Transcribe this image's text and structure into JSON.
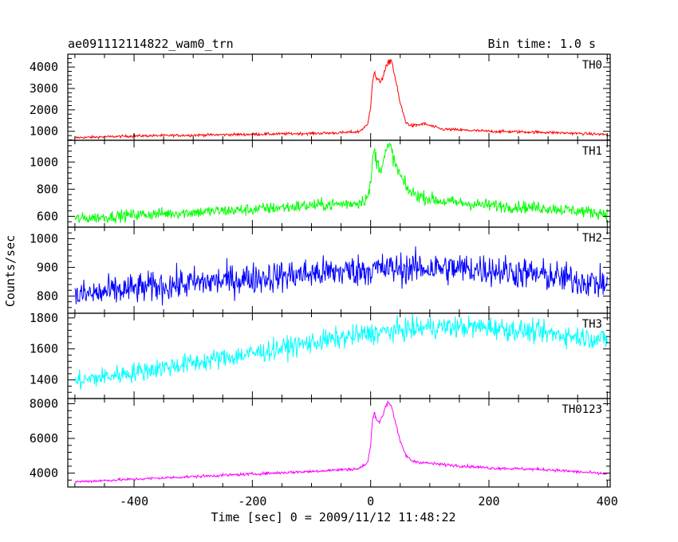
{
  "header": {
    "title": "ae091112114822_wam0_trn",
    "bin_time": "Bin time: 1.0 s"
  },
  "chart_data": {
    "type": "line",
    "title": "ae091112114822_wam0_trn",
    "subtitle": "Bin time: 1.0 s",
    "xlabel": "Time [sec] 0 = 2009/11/12 11:48:22",
    "ylabel": "Counts/sec",
    "xlim": [
      -512,
      405
    ],
    "x_ticks": [
      -400,
      -200,
      0,
      200,
      400
    ],
    "grid": false,
    "legend": "none",
    "panels": [
      {
        "name": "TH0",
        "color": "#ff0000",
        "ylim": [
          580,
          4600
        ],
        "y_ticks": [
          1000,
          2000,
          3000,
          4000
        ],
        "noise": 40,
        "x": [
          -500,
          -400,
          -300,
          -200,
          -100,
          -50,
          -20,
          -5,
          0,
          3,
          6,
          10,
          15,
          20,
          25,
          30,
          35,
          40,
          50,
          60,
          70,
          90,
          120,
          200,
          300,
          400
        ],
        "values": [
          700,
          780,
          820,
          860,
          900,
          930,
          980,
          1300,
          2200,
          3300,
          3750,
          3450,
          3300,
          3500,
          3900,
          4200,
          4350,
          3700,
          2300,
          1400,
          1250,
          1350,
          1100,
          1000,
          950,
          850
        ]
      },
      {
        "name": "TH1",
        "color": "#00ff00",
        "ylim": [
          520,
          1160
        ],
        "y_ticks": [
          600,
          800,
          1000
        ],
        "noise": 30,
        "x": [
          -500,
          -400,
          -300,
          -200,
          -100,
          -50,
          -20,
          -5,
          0,
          3,
          6,
          10,
          15,
          20,
          25,
          30,
          35,
          40,
          50,
          60,
          70,
          90,
          120,
          200,
          300,
          400
        ],
        "values": [
          580,
          610,
          630,
          650,
          680,
          690,
          700,
          740,
          830,
          1000,
          1090,
          1010,
          950,
          990,
          1060,
          1110,
          1100,
          1000,
          900,
          810,
          770,
          740,
          710,
          680,
          660,
          620
        ]
      },
      {
        "name": "TH2",
        "color": "#0000ff",
        "ylim": [
          740,
          1040
        ],
        "y_ticks": [
          800,
          900,
          1000
        ],
        "noise": 38,
        "x": [
          -500,
          -400,
          -300,
          -200,
          -100,
          0,
          100,
          200,
          300,
          400
        ],
        "values": [
          800,
          825,
          845,
          862,
          878,
          893,
          898,
          893,
          870,
          840
        ]
      },
      {
        "name": "TH3",
        "color": "#00ffff",
        "ylim": [
          1280,
          1830
        ],
        "y_ticks": [
          1400,
          1600,
          1800
        ],
        "noise": 45,
        "x": [
          -500,
          -400,
          -300,
          -200,
          -100,
          0,
          100,
          200,
          300,
          400
        ],
        "values": [
          1390,
          1450,
          1510,
          1570,
          1640,
          1700,
          1740,
          1740,
          1700,
          1660
        ]
      },
      {
        "name": "TH0123",
        "color": "#ff00ff",
        "ylim": [
          3200,
          8300
        ],
        "y_ticks": [
          4000,
          6000,
          8000
        ],
        "noise": 55,
        "x": [
          -500,
          -400,
          -300,
          -200,
          -100,
          -50,
          -20,
          -5,
          0,
          3,
          6,
          10,
          15,
          20,
          25,
          30,
          35,
          40,
          50,
          60,
          70,
          90,
          120,
          200,
          300,
          400
        ],
        "values": [
          3500,
          3650,
          3800,
          3950,
          4100,
          4200,
          4250,
          4600,
          5600,
          7000,
          7550,
          7100,
          6950,
          7250,
          7850,
          8100,
          7900,
          7200,
          5800,
          5000,
          4700,
          4600,
          4500,
          4300,
          4200,
          3950
        ]
      }
    ]
  }
}
